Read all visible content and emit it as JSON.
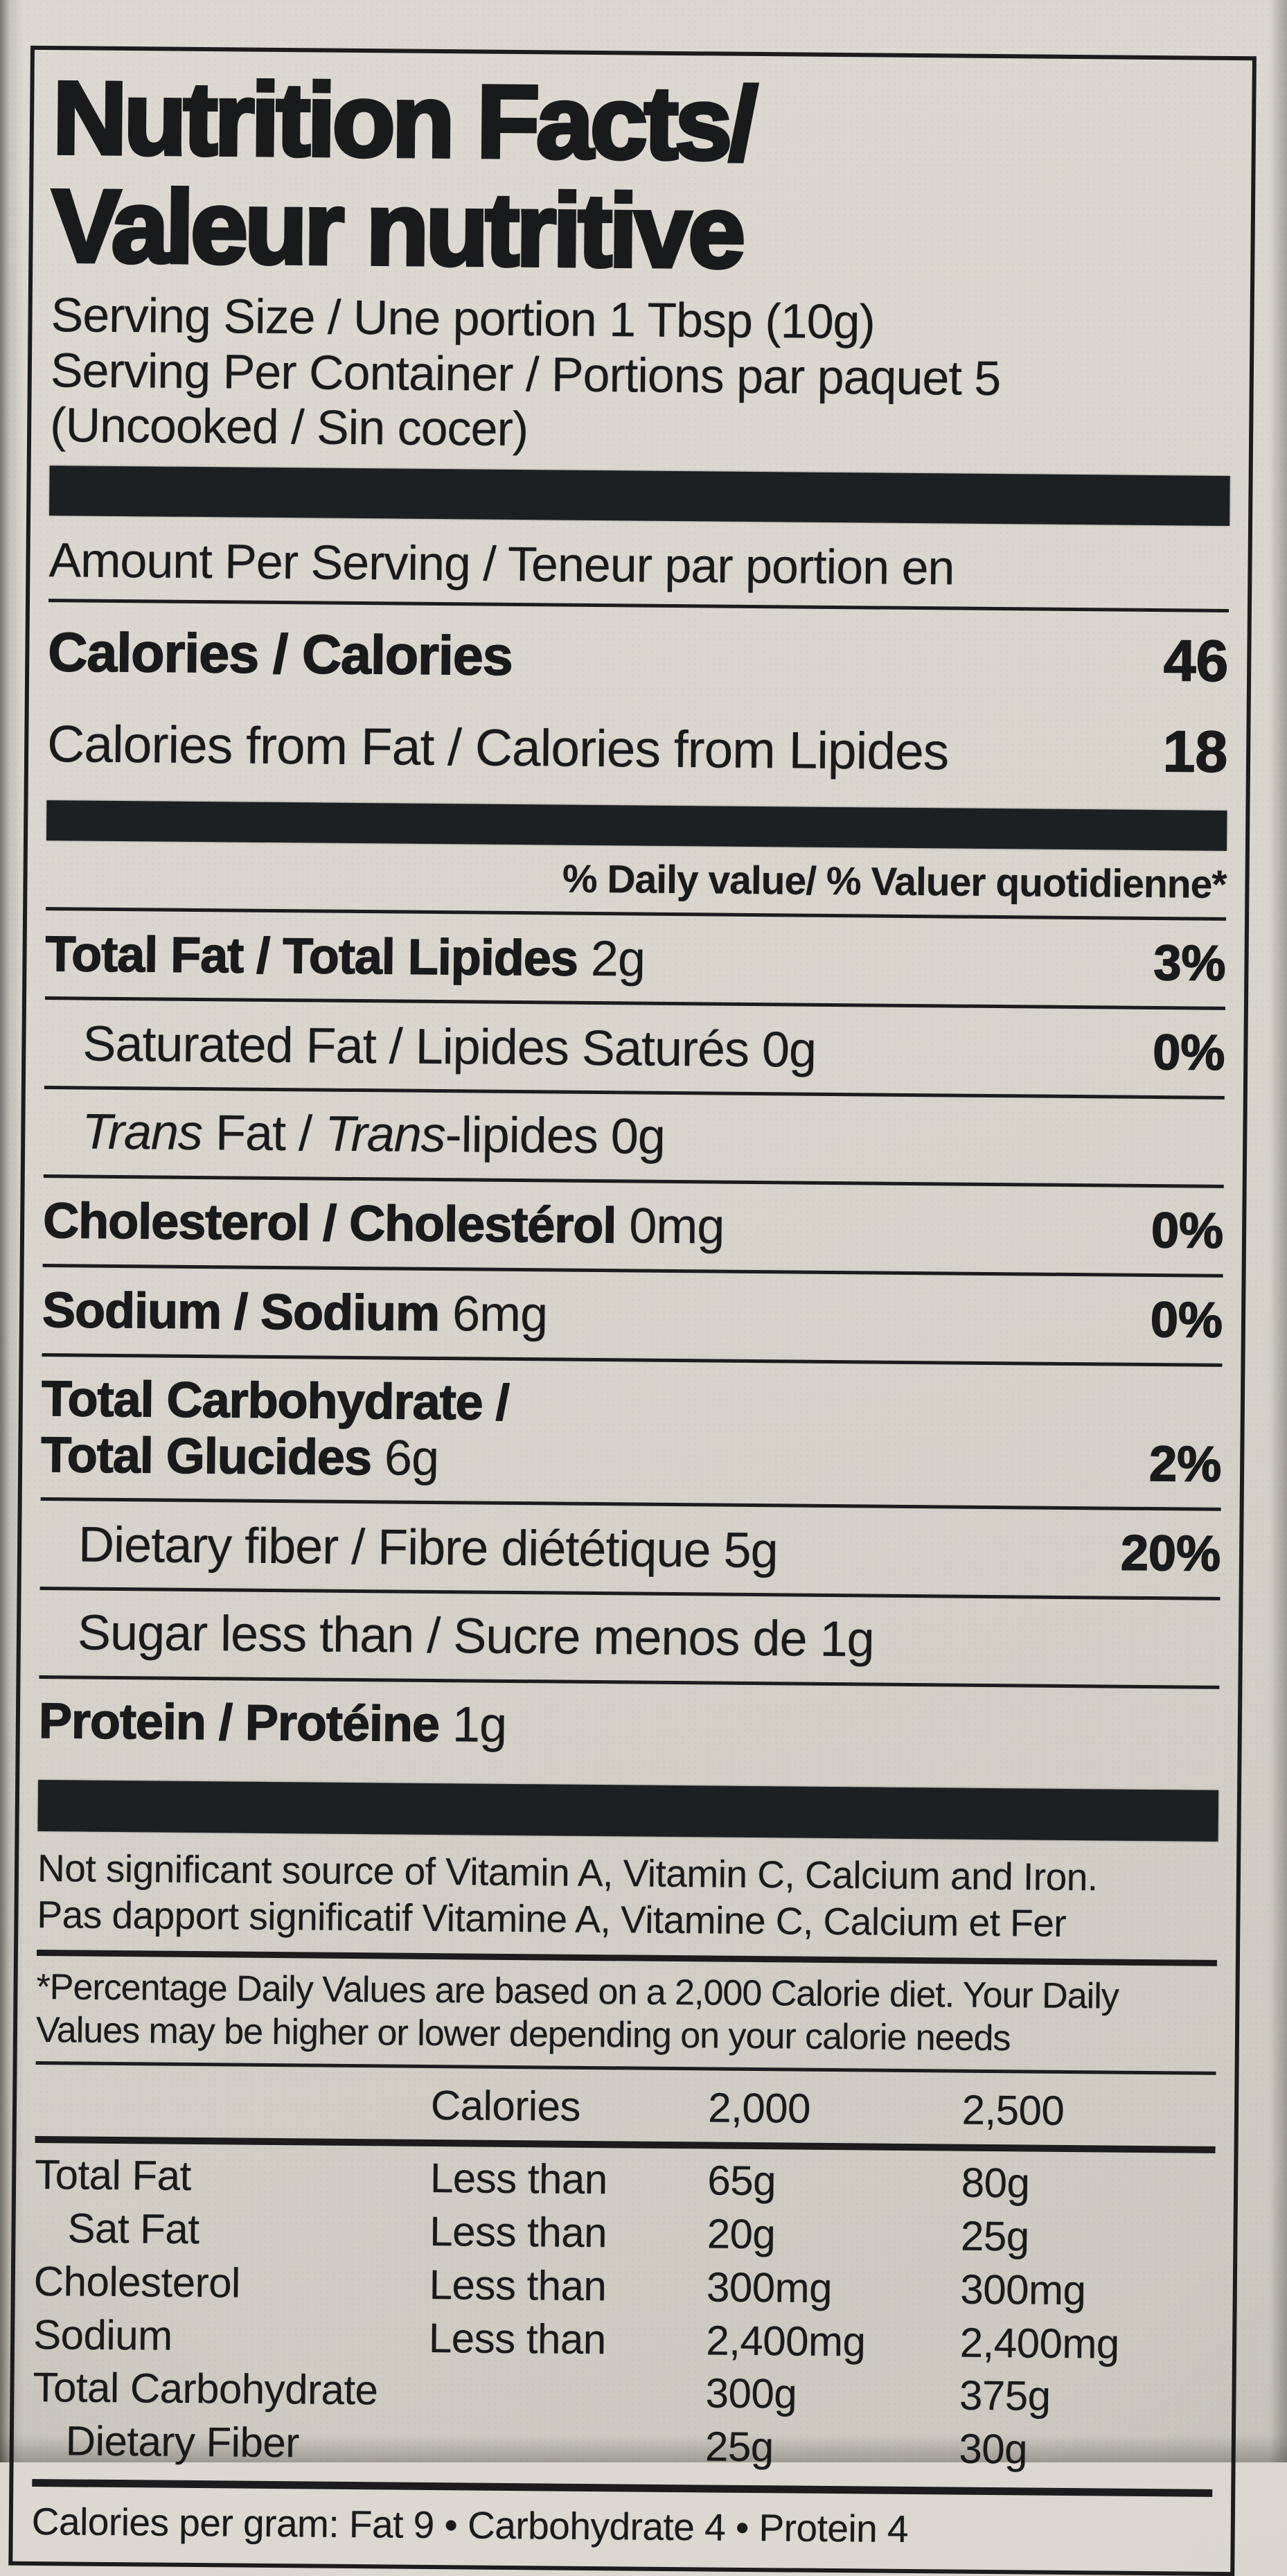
{
  "colors": {
    "paper": "#d9d5cc",
    "ink": "#191a1c",
    "bar": "#1d2023"
  },
  "header": {
    "title_line1": "Nutrition Facts/",
    "title_line2": "Valeur nutritive",
    "serving_lines": [
      "Serving Size / Une portion 1 Tbsp (10g)",
      "Serving Per Container / Portions par paquet 5",
      "(Uncooked / Sin cocer)"
    ]
  },
  "calories_section": {
    "amount_per_serving": "Amount Per Serving / Teneur par portion en",
    "rows": [
      {
        "label": "Calories / Calories",
        "value": "46"
      },
      {
        "label": "Calories from Fat / Calories from Lipides",
        "value": "18"
      }
    ]
  },
  "daily_value_header": "% Daily value/ % Valuer quotidienne*",
  "nutrients": [
    {
      "segments": [
        {
          "t": "Total Fat / Total Lipides",
          "b": true
        },
        {
          "t": " 2g"
        }
      ],
      "dv": "3%",
      "indent": false
    },
    {
      "segments": [
        {
          "t": "Saturated Fat / Lipides Saturés 0g"
        }
      ],
      "dv": "0%",
      "indent": true
    },
    {
      "segments": [
        {
          "t": "Trans",
          "i": true
        },
        {
          "t": " Fat / "
        },
        {
          "t": "Trans",
          "i": true
        },
        {
          "t": "-lipides 0g"
        }
      ],
      "dv": "",
      "indent": true
    },
    {
      "segments": [
        {
          "t": "Cholesterol / Cholestérol",
          "b": true
        },
        {
          "t": " 0mg"
        }
      ],
      "dv": "0%",
      "indent": false
    },
    {
      "segments": [
        {
          "t": "Sodium / Sodium",
          "b": true
        },
        {
          "t": " 6mg"
        }
      ],
      "dv": "0%",
      "indent": false
    },
    {
      "segments": [
        {
          "t": "Total Carbohydrate /",
          "b": true
        },
        {
          "br": true
        },
        {
          "t": "Total Glucides",
          "b": true
        },
        {
          "t": " 6g"
        }
      ],
      "dv": "2%",
      "indent": false
    },
    {
      "segments": [
        {
          "t": "Dietary fiber / Fibre diététique 5g"
        }
      ],
      "dv": "20%",
      "indent": true
    },
    {
      "segments": [
        {
          "t": "Sugar less than / Sucre menos de 1g"
        }
      ],
      "dv": "",
      "indent": true
    },
    {
      "segments": [
        {
          "t": "Protein / Protéine",
          "b": true
        },
        {
          "t": " 1g"
        }
      ],
      "dv": "",
      "indent": false
    }
  ],
  "notes": [
    "Not significant source of Vitamin A, Vitamin C, Calcium and Iron.",
    "Pas dapport significatif Vitamine A, Vitamine C, Calcium et Fer"
  ],
  "footnote_lines": [
    "*Percentage Daily Values are based on a 2,000 Calorie diet. Your Daily",
    "Values may be higher or lower depending on your calorie needs"
  ],
  "dv_table": {
    "header": [
      "Calories",
      "2,000",
      "2,500"
    ],
    "rows": [
      {
        "name": "Total Fat",
        "qualifier": "Less than",
        "v2000": "65g",
        "v2500": "80g",
        "indent": false
      },
      {
        "name": "Sat Fat",
        "qualifier": "Less than",
        "v2000": "20g",
        "v2500": "25g",
        "indent": true
      },
      {
        "name": "Cholesterol",
        "qualifier": "Less than",
        "v2000": "300mg",
        "v2500": "300mg",
        "indent": false
      },
      {
        "name": "Sodium",
        "qualifier": "Less than",
        "v2000": "2,400mg",
        "v2500": "2,400mg",
        "indent": false
      },
      {
        "name": "Total Carbohydrate",
        "qualifier": "",
        "v2000": "300g",
        "v2500": "375g",
        "indent": false
      },
      {
        "name": "Dietary Fiber",
        "qualifier": "",
        "v2000": "25g",
        "v2500": "30g",
        "indent": true
      }
    ]
  },
  "calories_per_gram": "Calories per gram: Fat 9 • Carbohydrate 4 • Protein 4"
}
